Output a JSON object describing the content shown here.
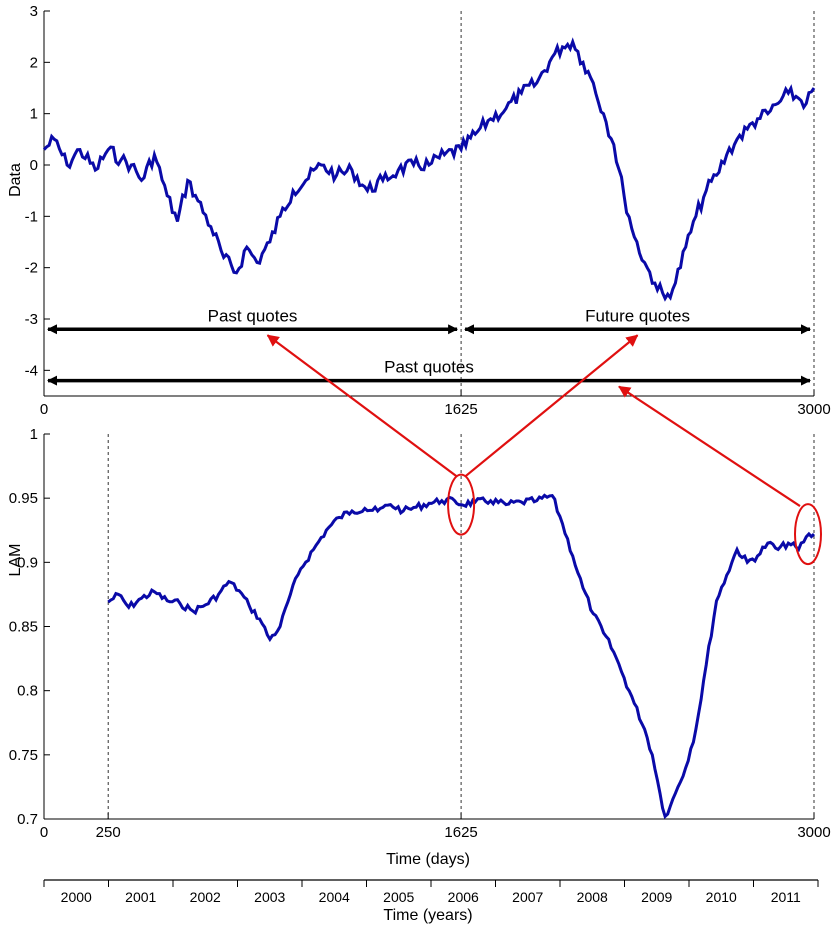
{
  "chart_data": [
    {
      "type": "line",
      "panel": "top",
      "title": "",
      "xlabel": "",
      "ylabel": "Data",
      "xlim": [
        0,
        3000
      ],
      "ylim": [
        -4.5,
        3
      ],
      "xticks": [
        "0",
        "1625",
        "3000"
      ],
      "yticks": [
        "3",
        "2",
        "1",
        "0",
        "-1",
        "-2",
        "-3",
        "-4"
      ],
      "series": [
        {
          "color": "#0a0aa8",
          "x": [
            0,
            40,
            90,
            140,
            200,
            250,
            300,
            340,
            380,
            430,
            480,
            520,
            560,
            600,
            650,
            700,
            750,
            790,
            830,
            880,
            920,
            970,
            1020,
            1080,
            1140,
            1200,
            1260,
            1320,
            1380,
            1440,
            1500,
            1560,
            1625,
            1680,
            1740,
            1800,
            1860,
            1920,
            1980,
            2020,
            2060,
            2100,
            2140,
            2180,
            2220,
            2260,
            2300,
            2340,
            2380,
            2420,
            2460,
            2500,
            2540,
            2580,
            2620,
            2660,
            2700,
            2740,
            2780,
            2820,
            2860,
            2900,
            2940,
            2970,
            3000
          ],
          "values": [
            0.3,
            0.5,
            0.0,
            0.3,
            -0.1,
            0.3,
            0.1,
            0.0,
            -0.3,
            0.2,
            -0.6,
            -1.1,
            -0.3,
            -0.7,
            -1.2,
            -1.8,
            -2.1,
            -1.6,
            -1.9,
            -1.5,
            -1.0,
            -0.5,
            -0.3,
            0.0,
            -0.2,
            -0.1,
            -0.5,
            -0.3,
            -0.1,
            0.0,
            0.0,
            0.2,
            0.3,
            0.6,
            0.9,
            1.1,
            1.4,
            1.6,
            2.1,
            2.3,
            2.4,
            2.0,
            1.6,
            1.0,
            0.4,
            -0.6,
            -1.4,
            -1.9,
            -2.3,
            -2.6,
            -2.3,
            -1.6,
            -1.0,
            -0.5,
            -0.2,
            0.2,
            0.5,
            0.7,
            0.9,
            1.0,
            1.2,
            1.4,
            1.3,
            1.2,
            1.5
          ]
        }
      ],
      "vlines": [
        1625,
        3000
      ],
      "annotations": [
        {
          "text": "Past quotes",
          "from": 0,
          "to": 1625,
          "y": -3.2
        },
        {
          "text": "Future quotes",
          "from": 1625,
          "to": 3000,
          "y": -3.2
        },
        {
          "text": "Past quotes",
          "from": 0,
          "to": 3000,
          "y": -4.2
        }
      ]
    },
    {
      "type": "line",
      "panel": "bottom",
      "title": "",
      "xlabel": "Time (days)",
      "ylabel": "LAM",
      "xlim": [
        0,
        3000
      ],
      "ylim": [
        0.7,
        1.0
      ],
      "xticks": [
        "0",
        "250",
        "1625",
        "3000"
      ],
      "yticks": [
        "1",
        "0.95",
        "0.9",
        "0.85",
        "0.8",
        "0.75",
        "0.7"
      ],
      "series": [
        {
          "color": "#0a0aa8",
          "x": [
            250,
            290,
            330,
            380,
            430,
            480,
            530,
            580,
            630,
            680,
            720,
            760,
            800,
            840,
            880,
            920,
            960,
            1000,
            1050,
            1100,
            1150,
            1200,
            1250,
            1300,
            1350,
            1400,
            1450,
            1500,
            1550,
            1600,
            1625,
            1680,
            1740,
            1800,
            1860,
            1920,
            1980,
            2020,
            2060,
            2100,
            2140,
            2180,
            2220,
            2260,
            2300,
            2340,
            2370,
            2400,
            2420,
            2440,
            2470,
            2500,
            2540,
            2580,
            2620,
            2660,
            2700,
            2740,
            2780,
            2820,
            2860,
            2900,
            2940,
            2970,
            3000
          ],
          "values": [
            0.869,
            0.875,
            0.865,
            0.872,
            0.877,
            0.87,
            0.868,
            0.862,
            0.867,
            0.875,
            0.885,
            0.878,
            0.866,
            0.856,
            0.84,
            0.85,
            0.875,
            0.895,
            0.91,
            0.925,
            0.935,
            0.94,
            0.942,
            0.94,
            0.945,
            0.94,
            0.943,
            0.946,
            0.948,
            0.948,
            0.945,
            0.947,
            0.948,
            0.945,
            0.947,
            0.948,
            0.952,
            0.93,
            0.905,
            0.88,
            0.86,
            0.845,
            0.83,
            0.81,
            0.79,
            0.77,
            0.75,
            0.72,
            0.702,
            0.71,
            0.725,
            0.74,
            0.77,
            0.82,
            0.87,
            0.89,
            0.91,
            0.9,
            0.905,
            0.915,
            0.91,
            0.915,
            0.91,
            0.92,
            0.922
          ]
        }
      ],
      "vlines": [
        250,
        1625,
        3000
      ],
      "highlight_circles": [
        1625,
        3000
      ]
    },
    {
      "type": "axis",
      "panel": "years-axis",
      "xlabel": "Time (years)",
      "labels": [
        "2000",
        "2001",
        "2002",
        "2003",
        "2004",
        "2005",
        "2006",
        "2007",
        "2008",
        "2009",
        "2010",
        "2011"
      ]
    }
  ]
}
